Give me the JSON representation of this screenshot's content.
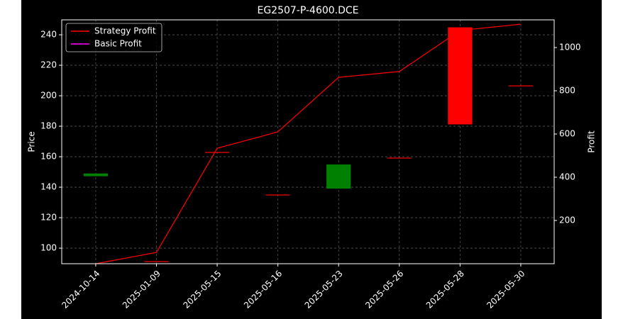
{
  "chart_data": {
    "type": "candlestick-line",
    "title": "EG2507-P-4600.DCE",
    "ylabel": "Price",
    "y2label": "Profit",
    "categories": [
      "2024-10-14",
      "2025-01-09",
      "2025-05-15",
      "2025-05-16",
      "2025-05-23",
      "2025-05-26",
      "2025-05-28",
      "2025-05-30"
    ],
    "candles": {
      "open": [
        147.2,
        91.2,
        162.8,
        134.9,
        139.1,
        159.1,
        244.9,
        206.5
      ],
      "close": [
        149.0,
        91.2,
        162.8,
        134.9,
        154.9,
        159.1,
        181.2,
        206.5
      ],
      "colors": [
        "#008000",
        "#ff0000",
        "#ff0000",
        "#ff0000",
        "#008000",
        "#ff0000",
        "#ff0000",
        "#ff0000"
      ]
    },
    "series": [
      {
        "name": "Strategy Profit",
        "color": "#ff0000",
        "axis": "y2",
        "values": [
          0,
          52,
          534,
          610,
          862,
          889,
          1079,
          1108
        ]
      },
      {
        "name": "Basic Profit",
        "color": "#ff00ff",
        "axis": "y2",
        "values": [
          null,
          null,
          null,
          null,
          null,
          null,
          null,
          null
        ]
      }
    ],
    "ylim": [
      89.8,
      249.8
    ],
    "yticks": [
      100,
      120,
      140,
      160,
      180,
      200,
      220,
      240
    ],
    "y2lim": [
      0,
      1128
    ],
    "y2ticks": [
      200,
      400,
      600,
      800,
      1000
    ],
    "grid": true,
    "legend": "upper-left"
  }
}
